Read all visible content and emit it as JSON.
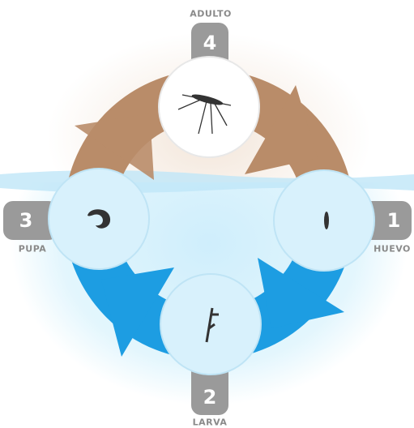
{
  "nodes": [
    {
      "number": "1",
      "label": "HUEVO"
    },
    {
      "number": "2",
      "label": "LARVA"
    },
    {
      "number": "3",
      "label": "PUPA"
    },
    {
      "number": "4",
      "label": "ADULTO"
    }
  ]
}
